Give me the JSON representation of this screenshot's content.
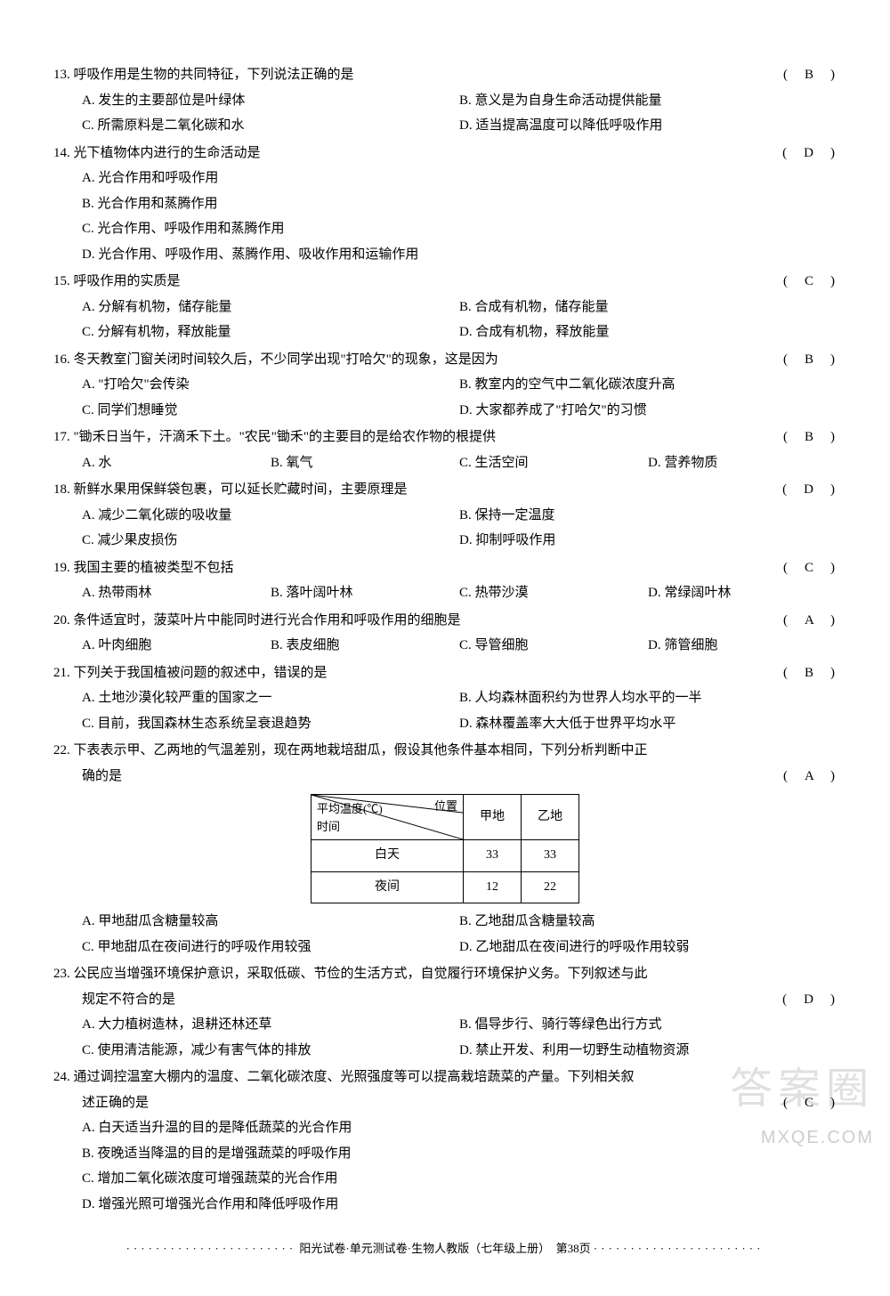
{
  "questions": [
    {
      "num": "13",
      "stem": "呼吸作用是生物的共同特征，下列说法正确的是",
      "answer": "B",
      "layout": "two-col",
      "opts": {
        "A": "发生的主要部位是叶绿体",
        "B": "意义是为自身生命活动提供能量",
        "C": "所需原料是二氧化碳和水",
        "D": "适当提高温度可以降低呼吸作用"
      }
    },
    {
      "num": "14",
      "stem": "光下植物体内进行的生命活动是",
      "answer": "D",
      "layout": "one-col",
      "opts": {
        "A": "光合作用和呼吸作用",
        "B": "光合作用和蒸腾作用",
        "C": "光合作用、呼吸作用和蒸腾作用",
        "D": "光合作用、呼吸作用、蒸腾作用、吸收作用和运输作用"
      }
    },
    {
      "num": "15",
      "stem": "呼吸作用的实质是",
      "answer": "C",
      "layout": "two-col",
      "opts": {
        "A": "分解有机物，储存能量",
        "B": "合成有机物，储存能量",
        "C": "分解有机物，释放能量",
        "D": "合成有机物，释放能量"
      }
    },
    {
      "num": "16",
      "stem": "冬天教室门窗关闭时间较久后，不少同学出现\"打哈欠\"的现象，这是因为",
      "answer": "B",
      "layout": "two-col",
      "opts": {
        "A": "\"打哈欠\"会传染",
        "B": "教室内的空气中二氧化碳浓度升高",
        "C": "同学们想睡觉",
        "D": "大家都养成了\"打哈欠\"的习惯"
      }
    },
    {
      "num": "17",
      "stem": "\"锄禾日当午，汗滴禾下土。\"农民\"锄禾\"的主要目的是给农作物的根提供",
      "answer": "B",
      "layout": "four-col",
      "opts": {
        "A": "水",
        "B": "氧气",
        "C": "生活空间",
        "D": "营养物质"
      }
    },
    {
      "num": "18",
      "stem": "新鲜水果用保鲜袋包裹，可以延长贮藏时间，主要原理是",
      "answer": "D",
      "layout": "two-col",
      "opts": {
        "A": "减少二氧化碳的吸收量",
        "B": "保持一定温度",
        "C": "减少果皮损伤",
        "D": "抑制呼吸作用"
      }
    },
    {
      "num": "19",
      "stem": "我国主要的植被类型不包括",
      "answer": "C",
      "layout": "four-col",
      "opts": {
        "A": "热带雨林",
        "B": "落叶阔叶林",
        "C": "热带沙漠",
        "D": "常绿阔叶林"
      }
    },
    {
      "num": "20",
      "stem": "条件适宜时，菠菜叶片中能同时进行光合作用和呼吸作用的细胞是",
      "answer": "A",
      "layout": "four-col",
      "opts": {
        "A": "叶肉细胞",
        "B": "表皮细胞",
        "C": "导管细胞",
        "D": "筛管细胞"
      }
    },
    {
      "num": "21",
      "stem": "下列关于我国植被问题的叙述中，错误的是",
      "answer": "B",
      "layout": "two-col",
      "opts": {
        "A": "土地沙漠化较严重的国家之一",
        "B": "人均森林面积约为世界人均水平的一半",
        "C": "目前，我国森林生态系统呈衰退趋势",
        "D": "森林覆盖率大大低于世界平均水平"
      }
    },
    {
      "num": "22",
      "stem": "下表表示甲、乙两地的气温差别，现在两地栽培甜瓜，假设其他条件基本相同，下列分析判断中正",
      "stem2": "确的是",
      "answer": "A",
      "layout": "two-col",
      "opts": {
        "A": "甲地甜瓜含糖量较高",
        "B": "乙地甜瓜含糖量较高",
        "C": "甲地甜瓜在夜间进行的呼吸作用较强",
        "D": "乙地甜瓜在夜间进行的呼吸作用较弱"
      },
      "table": {
        "diag_top": "位置",
        "diag_mid": "平均温度(℃)",
        "diag_bot": "时间",
        "cols": [
          "甲地",
          "乙地"
        ],
        "rows": [
          {
            "label": "白天",
            "vals": [
              "33",
              "33"
            ]
          },
          {
            "label": "夜间",
            "vals": [
              "12",
              "22"
            ]
          }
        ]
      }
    },
    {
      "num": "23",
      "stem": "公民应当增强环境保护意识，采取低碳、节俭的生活方式，自觉履行环境保护义务。下列叙述与此",
      "stem2": "规定不符合的是",
      "answer": "D",
      "layout": "two-col",
      "opts": {
        "A": "大力植树造林，退耕还林还草",
        "B": "倡导步行、骑行等绿色出行方式",
        "C": "使用清洁能源，减少有害气体的排放",
        "D": "禁止开发、利用一切野生动植物资源"
      }
    },
    {
      "num": "24",
      "stem": "通过调控温室大棚内的温度、二氧化碳浓度、光照强度等可以提高栽培蔬菜的产量。下列相关叙",
      "stem2": "述正确的是",
      "answer": "C",
      "layout": "one-col",
      "opts": {
        "A": "白天适当升温的目的是降低蔬菜的光合作用",
        "B": "夜晚适当降温的目的是增强蔬菜的呼吸作用",
        "C": "增加二氧化碳浓度可增强蔬菜的光合作用",
        "D": "增强光照可增强光合作用和降低呼吸作用"
      }
    }
  ],
  "footer": {
    "text": "阳光试卷·单元测试卷·生物人教版（七年级上册）　第38页"
  },
  "watermark1": "答案圈",
  "watermark2": "MXQE.COM"
}
